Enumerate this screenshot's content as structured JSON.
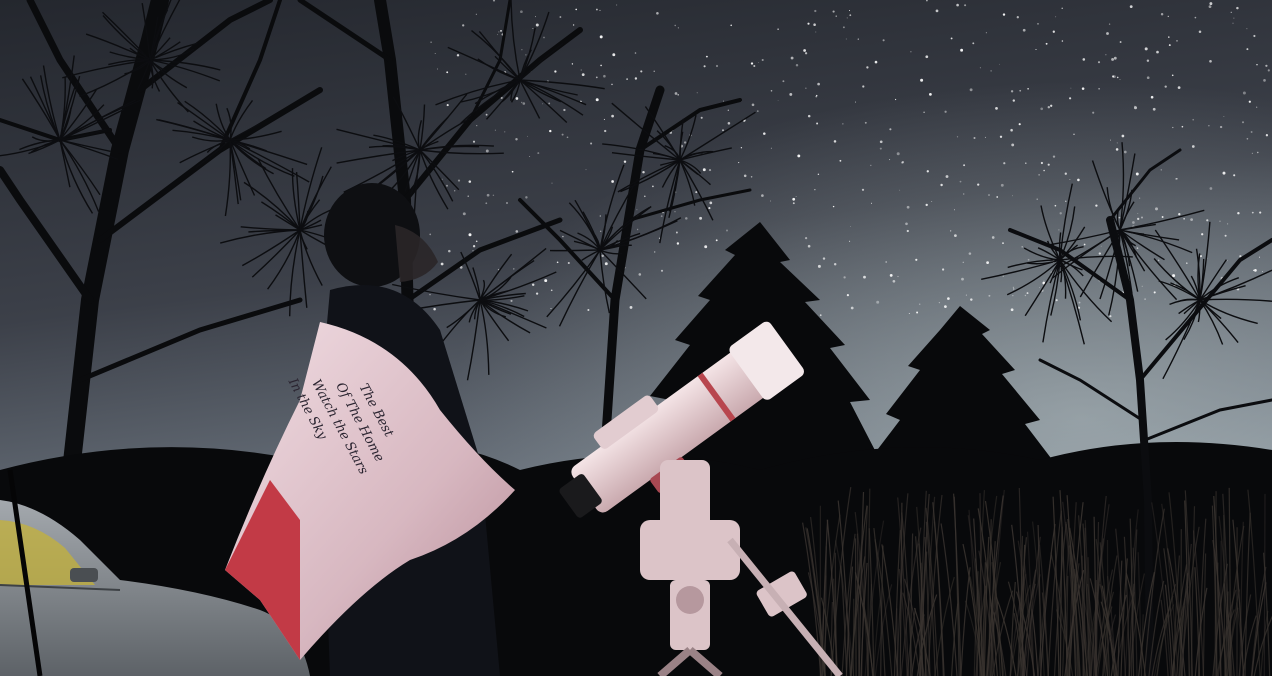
{
  "scene": {
    "subject": "person stargazing beside a telescope at night",
    "elements": [
      "starry-sky",
      "bare-trees",
      "evergreen-trees",
      "person",
      "flag-with-handwriting",
      "refractor-telescope",
      "tripod-mount",
      "parked-car",
      "grass"
    ],
    "colors": {
      "sky_top": "#2b2e36",
      "sky_mid": "#4a4e57",
      "sky_glow": "#8f9aa4",
      "silhouette": "#07080a",
      "telescope": "#e8d6d8",
      "telescope_accent": "#b8464e",
      "flag_white": "#e9d3d9",
      "flag_red": "#c23a46",
      "car": "#8e9398"
    }
  },
  "flag": {
    "handwriting": [
      "The Best",
      "Of The Home",
      "Watch the Stars",
      "In the Sky"
    ]
  }
}
